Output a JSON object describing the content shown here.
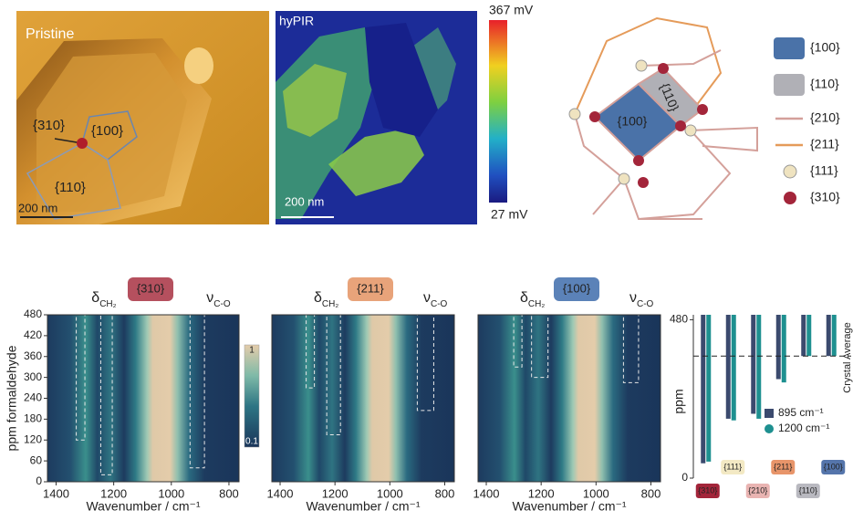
{
  "afm": {
    "label": "Pristine",
    "facets": [
      "{310}",
      "{100}",
      "{110}"
    ],
    "scale_bar": "200 nm"
  },
  "hypir": {
    "label": "hyPIR",
    "scale_bar": "200 nm",
    "colorbar_max": "367 mV",
    "colorbar_min": "27 mV"
  },
  "schematic": {
    "facets": [
      "{100}",
      "{110}"
    ],
    "legend": [
      "{100}",
      "{110}",
      "{210}",
      "{211}",
      "{111}",
      "{310}"
    ]
  },
  "chart_data": [
    {
      "type": "contour",
      "tag": "{310}",
      "tag_color": "#b5505e",
      "annotations": [
        {
          "symbol": "δ",
          "subscript": "CH₂"
        },
        {
          "symbol": "ν",
          "subscript": "C-O"
        }
      ],
      "ylabel": "ppm formaldehyde",
      "xlabel": "Wavenumber / cm⁻¹",
      "xlim": [
        1430,
        765
      ],
      "xticks": [
        1400,
        1200,
        1000,
        800
      ],
      "ylim": [
        0,
        480
      ],
      "yticks": [
        0,
        60,
        120,
        180,
        240,
        300,
        360,
        420,
        480
      ],
      "clim": [
        0.1,
        1
      ],
      "regions": [
        {
          "x": [
            1330,
            1300
          ],
          "y": [
            120,
            480
          ]
        },
        {
          "x": [
            1245,
            1205
          ],
          "y": [
            20,
            480
          ]
        },
        {
          "x": [
            935,
            885
          ],
          "y": [
            40,
            480
          ]
        }
      ]
    },
    {
      "type": "contour",
      "tag": "{211}",
      "tag_color": "#e8a37a",
      "annotations": [
        {
          "symbol": "δ",
          "subscript": "CH₂"
        },
        {
          "symbol": "ν",
          "subscript": "C-O"
        }
      ],
      "xlabel": "Wavenumber / cm⁻¹",
      "xlim": [
        1430,
        765
      ],
      "xticks": [
        1400,
        1200,
        1000,
        800
      ],
      "ylim": [
        0,
        480
      ],
      "regions": [
        {
          "x": [
            1305,
            1275
          ],
          "y": [
            270,
            480
          ]
        },
        {
          "x": [
            1230,
            1180
          ],
          "y": [
            135,
            480
          ]
        },
        {
          "x": [
            900,
            840
          ],
          "y": [
            205,
            480
          ]
        }
      ]
    },
    {
      "type": "contour",
      "tag": "{100}",
      "tag_color": "#5b82b8",
      "annotations": [
        {
          "symbol": "δ",
          "subscript": "CH₂"
        },
        {
          "symbol": "ν",
          "subscript": "C-O"
        }
      ],
      "xlabel": "Wavenumber / cm⁻¹",
      "xlim": [
        1430,
        765
      ],
      "xticks": [
        1400,
        1200,
        1000,
        800
      ],
      "ylim": [
        0,
        480
      ],
      "regions": [
        {
          "x": [
            1300,
            1270
          ],
          "y": [
            330,
            480
          ]
        },
        {
          "x": [
            1235,
            1175
          ],
          "y": [
            300,
            480
          ]
        },
        {
          "x": [
            900,
            845
          ],
          "y": [
            285,
            480
          ]
        }
      ]
    },
    {
      "type": "bar",
      "ylabel": "ppm",
      "ylim": [
        0,
        495
      ],
      "yticks": [
        0,
        480
      ],
      "categories": [
        "{310}",
        "{111}",
        "{210}",
        "{211}",
        "{110}",
        "{100}"
      ],
      "category_colors": [
        "#a3253a",
        "#f3e9c4",
        "#e9b4b2",
        "#e8956a",
        "#b9b9c0",
        "#5575ab"
      ],
      "series": [
        {
          "name": "895 cm⁻¹",
          "color": "#3b4a6e",
          "values": [
            45,
            180,
            195,
            300,
            370,
            370
          ]
        },
        {
          "name": "1200 cm⁻¹",
          "color": "#1e9090",
          "values": [
            50,
            175,
            180,
            290,
            370,
            370
          ]
        }
      ],
      "reference_line": {
        "label": "Crystal Average",
        "value": 370
      }
    }
  ]
}
